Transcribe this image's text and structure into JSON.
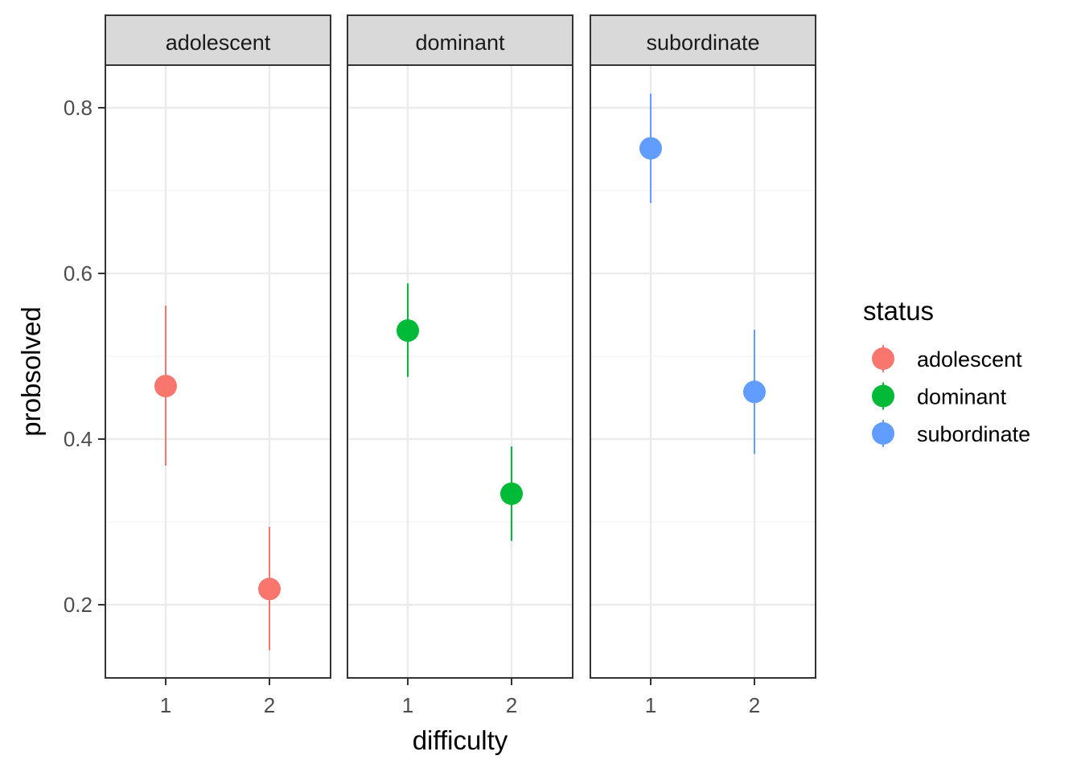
{
  "chart_data": {
    "type": "scatter",
    "subtype": "faceted point-range",
    "facet_variable": "status",
    "facets": [
      "adolescent",
      "dominant",
      "subordinate"
    ],
    "xlabel": "difficulty",
    "ylabel": "probsolved",
    "x_categories": [
      "1",
      "2"
    ],
    "y_ticks": [
      0.2,
      0.4,
      0.6,
      0.8
    ],
    "ylim": [
      0.11,
      0.91
    ],
    "grid": true,
    "legend": {
      "title": "status",
      "position": "right",
      "entries": [
        "adolescent",
        "dominant",
        "subordinate"
      ]
    },
    "colors": {
      "adolescent": "#F8766D",
      "dominant": "#00BA38",
      "subordinate": "#619CFF"
    },
    "series": [
      {
        "name": "adolescent",
        "points": [
          {
            "x": "1",
            "y": 0.464,
            "ymin": 0.368,
            "ymax": 0.561
          },
          {
            "x": "2",
            "y": 0.219,
            "ymin": 0.145,
            "ymax": 0.294
          }
        ]
      },
      {
        "name": "dominant",
        "points": [
          {
            "x": "1",
            "y": 0.531,
            "ymin": 0.475,
            "ymax": 0.588
          },
          {
            "x": "2",
            "y": 0.334,
            "ymin": 0.277,
            "ymax": 0.391
          }
        ]
      },
      {
        "name": "subordinate",
        "points": [
          {
            "x": "1",
            "y": 0.751,
            "ymin": 0.685,
            "ymax": 0.817
          },
          {
            "x": "2",
            "y": 0.457,
            "ymin": 0.382,
            "ymax": 0.532
          }
        ]
      }
    ]
  }
}
